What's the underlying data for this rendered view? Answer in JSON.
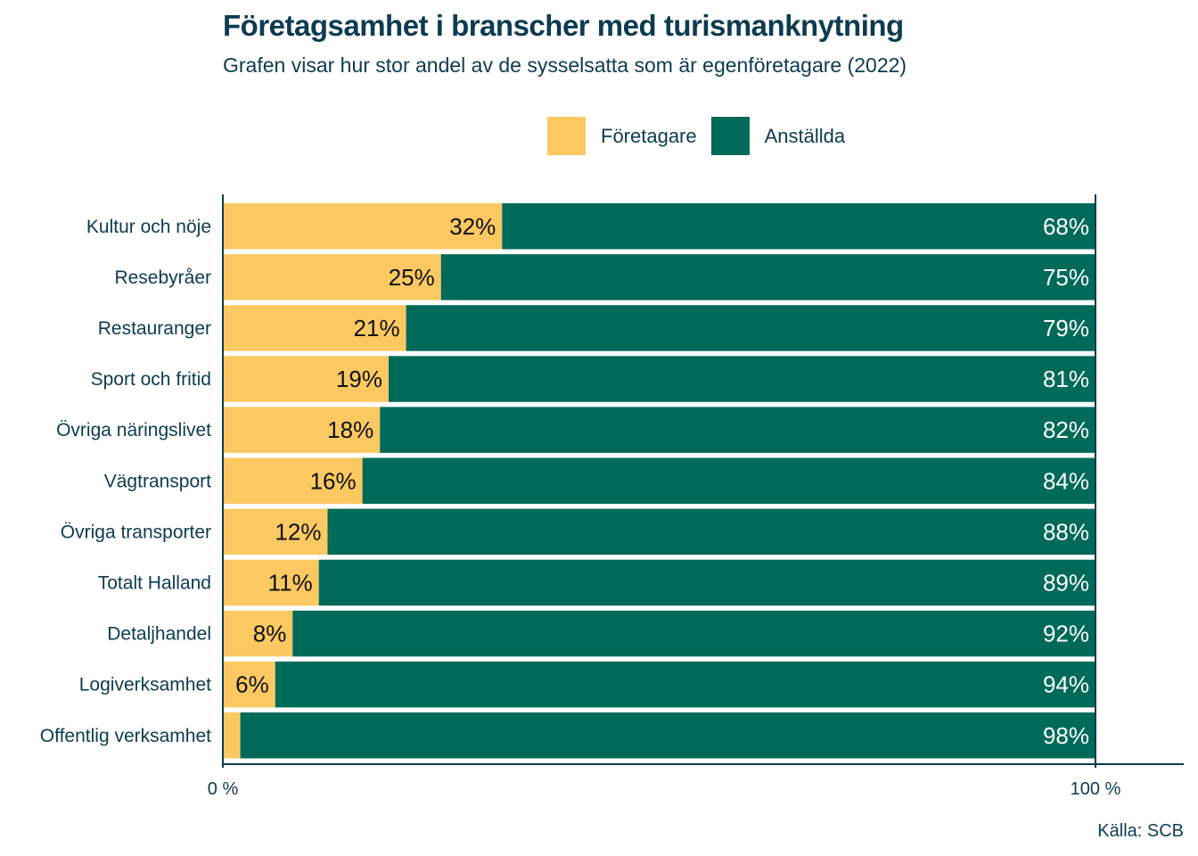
{
  "title": "Företagsamhet i branscher med turismanknytning",
  "subtitle": "Grafen visar hur stor andel av de sysselsatta som är egenföretagare (2022)",
  "source": "Källa: SCB",
  "colors": {
    "foretagare": "#fbc862",
    "anstallda": "#006a59",
    "axis": "#0d3b4f"
  },
  "chart_data": {
    "type": "bar",
    "orientation": "horizontal",
    "stacked": true,
    "categories": [
      "Kultur och nöje",
      "Resebyråer",
      "Restauranger",
      "Sport och fritid",
      "Övriga näringslivet",
      "Vägtransport",
      "Övriga transporter",
      "Totalt Halland",
      "Detaljhandel",
      "Logiverksamhet",
      "Offentlig verksamhet"
    ],
    "series": [
      {
        "name": "Företagare",
        "values": [
          32,
          25,
          21,
          19,
          18,
          16,
          12,
          11,
          8,
          6,
          2
        ],
        "labels": [
          "32%",
          "25%",
          "21%",
          "19%",
          "18%",
          "16%",
          "12%",
          "11%",
          "8%",
          "6%",
          ""
        ]
      },
      {
        "name": "Anställda",
        "values": [
          68,
          75,
          79,
          81,
          82,
          84,
          88,
          89,
          92,
          94,
          98
        ],
        "labels": [
          "68%",
          "75%",
          "79%",
          "81%",
          "82%",
          "84%",
          "88%",
          "89%",
          "92%",
          "94%",
          "98%"
        ]
      }
    ],
    "xlim": [
      0,
      100
    ],
    "xticks": [
      "0 %",
      "100 %"
    ],
    "legend": "top"
  }
}
